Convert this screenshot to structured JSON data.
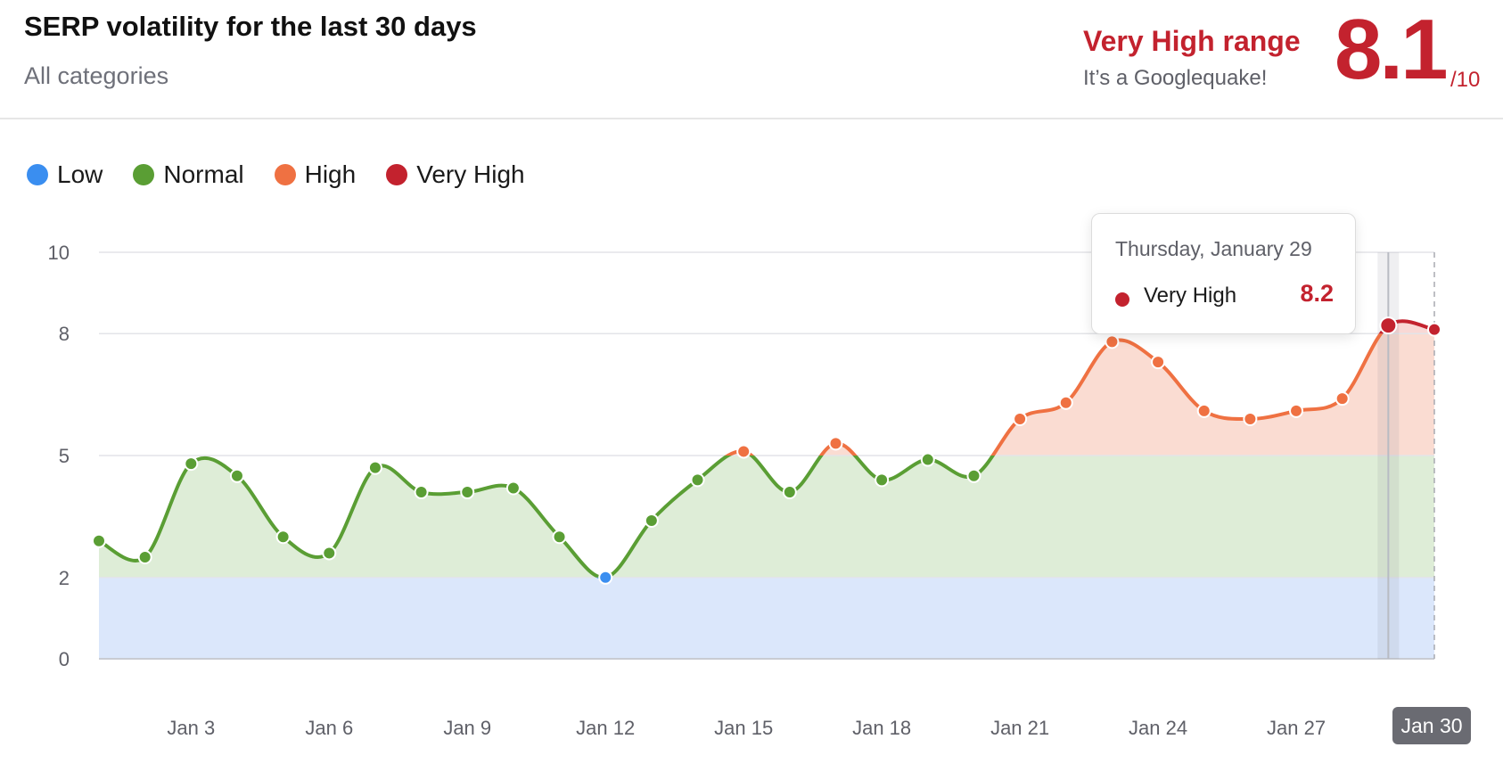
{
  "header": {
    "title": "SERP volatility for the last 30 days",
    "subtitle": "All categories",
    "range_title": "Very High range",
    "range_subtitle": "It’s a Googlequake!",
    "score": "8.1",
    "score_max": "/10"
  },
  "legend": [
    {
      "label": "Low",
      "color": "#3a8ef0"
    },
    {
      "label": "Normal",
      "color": "#5a9e34"
    },
    {
      "label": "High",
      "color": "#ef7142"
    },
    {
      "label": "Very High",
      "color": "#c3222e"
    }
  ],
  "tooltip": {
    "date": "Thursday, January 29",
    "label": "Very High",
    "value": "8.2",
    "color": "#c3222e"
  },
  "x_badge": "Jan 30",
  "colors": {
    "low": "#3a8ef0",
    "normal": "#5a9e34",
    "high": "#ef7142",
    "very_high": "#c3222e",
    "low_band": "#dbe7fb",
    "normal_band": "#deedd7",
    "high_band": "#fadcd2",
    "very_high_band": "#f9d8d5"
  },
  "chart_data": {
    "type": "line",
    "title": "SERP volatility for the last 30 days",
    "x": [
      "Jan 1",
      "Jan 2",
      "Jan 3",
      "Jan 4",
      "Jan 5",
      "Jan 6",
      "Jan 7",
      "Jan 8",
      "Jan 9",
      "Jan 10",
      "Jan 11",
      "Jan 12",
      "Jan 13",
      "Jan 14",
      "Jan 15",
      "Jan 16",
      "Jan 17",
      "Jan 18",
      "Jan 19",
      "Jan 20",
      "Jan 21",
      "Jan 22",
      "Jan 23",
      "Jan 24",
      "Jan 25",
      "Jan 26",
      "Jan 27",
      "Jan 28",
      "Jan 29",
      "Jan 30"
    ],
    "values": [
      2.9,
      2.5,
      4.8,
      4.5,
      3.0,
      2.6,
      4.7,
      4.1,
      4.1,
      4.2,
      3.0,
      2.0,
      3.4,
      4.4,
      5.1,
      4.1,
      5.3,
      4.4,
      4.9,
      4.5,
      5.9,
      6.3,
      7.8,
      7.3,
      6.1,
      5.9,
      6.1,
      6.4,
      8.2,
      8.1
    ],
    "x_tick_labels": [
      "Jan 3",
      "Jan 6",
      "Jan 9",
      "Jan 12",
      "Jan 15",
      "Jan 18",
      "Jan 21",
      "Jan 24",
      "Jan 27"
    ],
    "y_ticks": [
      0,
      2,
      5,
      8,
      10
    ],
    "ylim": [
      0,
      10
    ],
    "bands": [
      {
        "name": "Low",
        "from": 0,
        "to": 2
      },
      {
        "name": "Normal",
        "from": 2,
        "to": 5
      },
      {
        "name": "High",
        "from": 5,
        "to": 8
      },
      {
        "name": "Very High",
        "from": 8,
        "to": 10
      }
    ],
    "grid": true,
    "legend_position": "top-left"
  }
}
